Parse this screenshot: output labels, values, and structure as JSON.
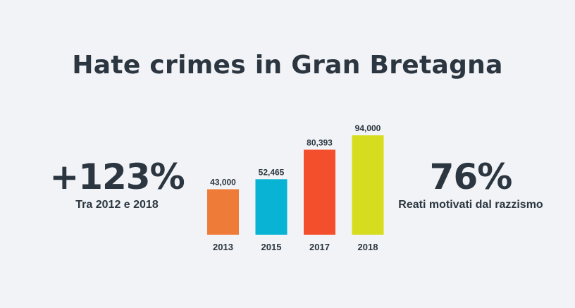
{
  "title": "Hate crimes in Gran Bretagna",
  "left_stat": {
    "value": "+123%",
    "caption": "Tra 2012 e 2018"
  },
  "right_stat": {
    "value": "76%",
    "caption": "Reati motivati dal razzismo"
  },
  "chart_data": {
    "type": "bar",
    "categories": [
      "2013",
      "2015",
      "2017",
      "2018"
    ],
    "values": [
      43000,
      52465,
      80393,
      94000
    ],
    "value_labels": [
      "43,000",
      "52,465",
      "80,393",
      "94,000"
    ],
    "colors": [
      "#ee7b38",
      "#08b3d4",
      "#f44f2d",
      "#d6dd1e"
    ],
    "ylim": [
      0,
      94000
    ],
    "grid": false,
    "legend": "none"
  }
}
